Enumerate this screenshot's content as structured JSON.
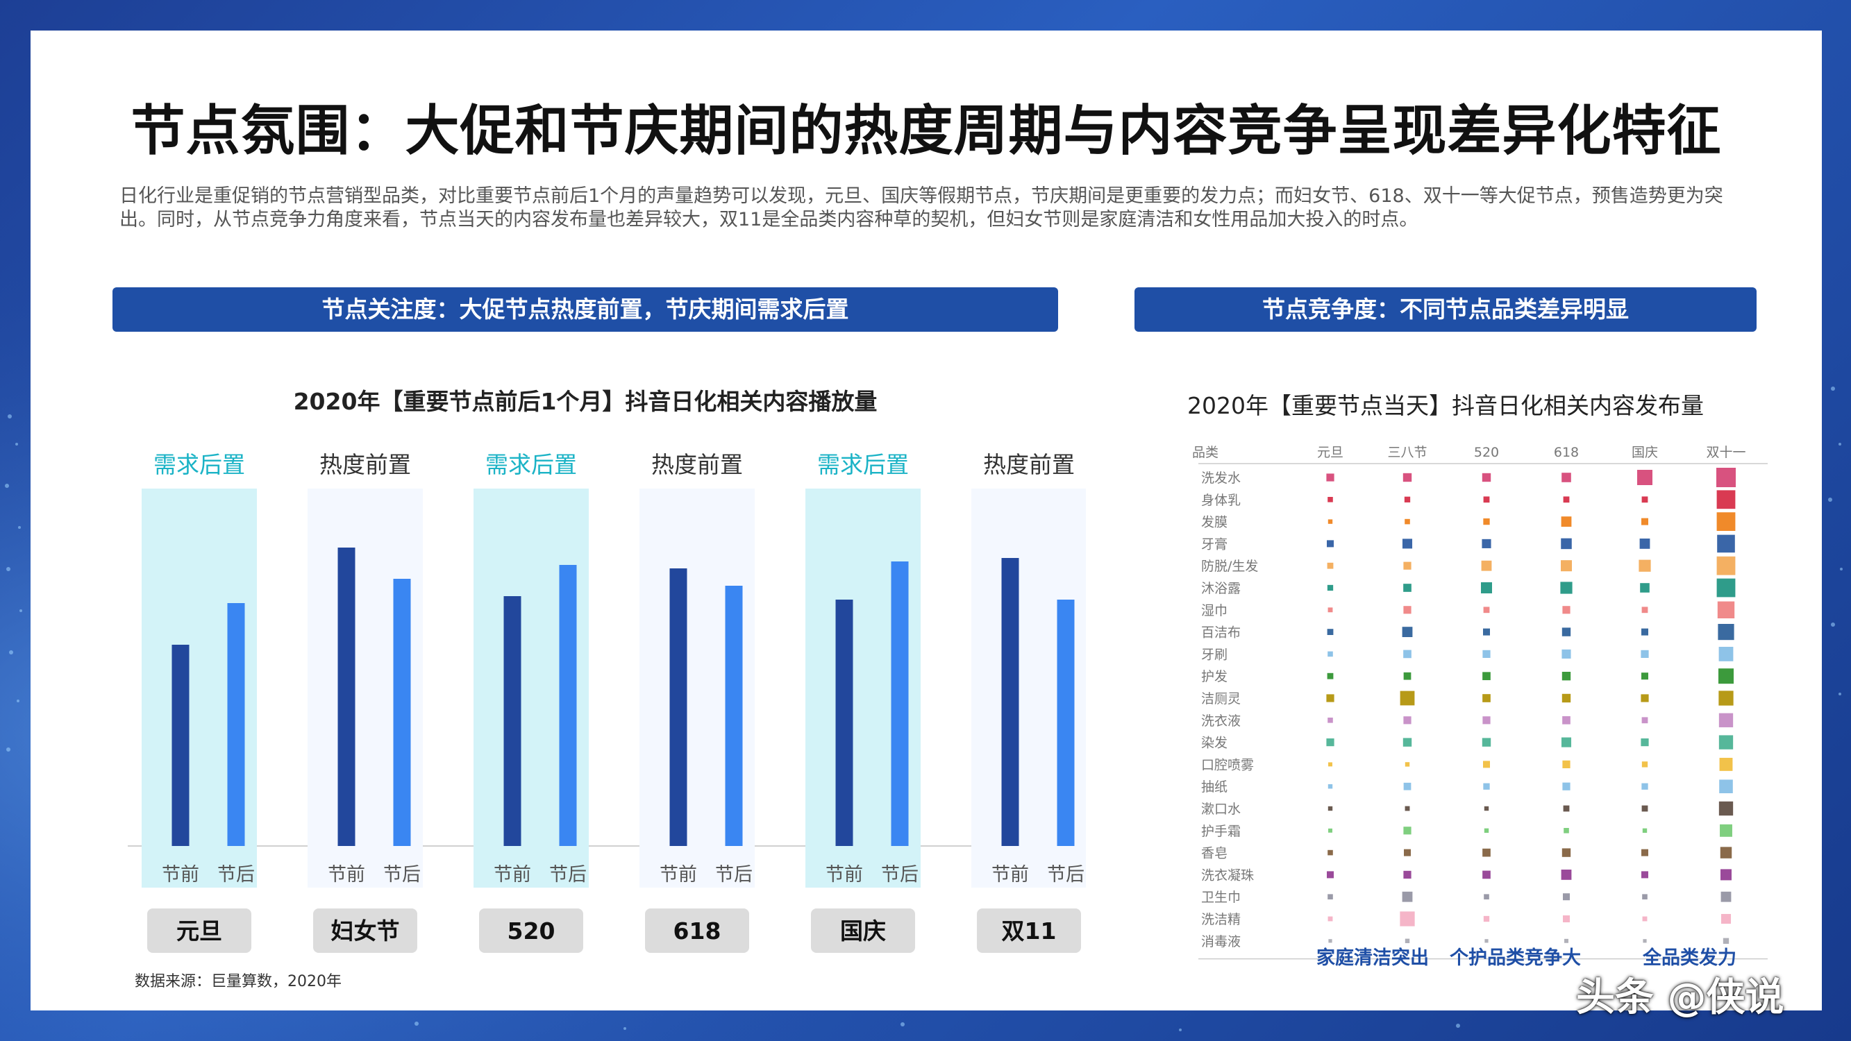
{
  "title": "节点氛围：大促和节庆期间的热度周期与内容竞争呈现差异化特征",
  "intro": "日化行业是重促销的节点营销型品类，对比重要节点前后1个月的声量趋势可以发现，元旦、国庆等假期节点，节庆期间是更重要的发力点；而妇女节、618、双十一等大促节点，预售造势更为突出。同时，从节点竞争力角度来看，节点当天的内容发布量也差异较大，双11是全品类内容种草的契机，但妇女节则是家庭清洁和女性用品加大投入的时点。",
  "left": {
    "banner": "节点关注度：大促节点热度前置，节庆期间需求后置",
    "source": "数据来源：巨量算数，2020年"
  },
  "right": {
    "banner": "节点竞争度：不同节点品类差异明显",
    "callouts": [
      "家庭清洁突出",
      "个护品类竞争大",
      "全品类发力"
    ]
  },
  "watermark": "头条 @侠说",
  "chart_data": [
    {
      "type": "bar",
      "title": "2020年【重要节点前后1个月】抖音日化相关内容播放量",
      "categories": [
        "元旦",
        "妇女节",
        "520",
        "618",
        "国庆",
        "双11"
      ],
      "group_labels": [
        "需求后置",
        "热度前置",
        "需求后置",
        "热度前置",
        "需求后置",
        "热度前置"
      ],
      "highlight": [
        true,
        false,
        true,
        false,
        true,
        false
      ],
      "sub_labels": [
        "节前",
        "节后"
      ],
      "series": [
        {
          "name": "节前",
          "values": [
            58,
            86,
            72,
            80,
            71,
            83
          ]
        },
        {
          "name": "节后",
          "values": [
            70,
            77,
            81,
            75,
            82,
            71
          ]
        }
      ],
      "ylim": [
        0,
        100
      ],
      "colors": {
        "before": "#22479c",
        "after": "#3a86f2",
        "highlight_bg": "#d3f3f8",
        "plain_bg": "#f4f8ff",
        "highlight_label": "#1bb3c6",
        "plain_label": "#333333"
      }
    },
    {
      "type": "heatmap",
      "title": "2020年【重要节点当天】抖音日化相关内容发布量",
      "corner_label": "品类",
      "columns": [
        "元旦",
        "三八节",
        "520",
        "618",
        "国庆",
        "双十一"
      ],
      "rows": [
        {
          "name": "洗发水",
          "color": "#d8527f",
          "values": [
            0.3,
            0.35,
            0.35,
            0.4,
            0.75,
            1.0
          ]
        },
        {
          "name": "身体乳",
          "color": "#d93a52",
          "values": [
            0.15,
            0.18,
            0.2,
            0.2,
            0.2,
            0.95
          ]
        },
        {
          "name": "发膜",
          "color": "#f08a2a",
          "values": [
            0.1,
            0.15,
            0.22,
            0.45,
            0.25,
            0.95
          ]
        },
        {
          "name": "牙膏",
          "color": "#3a66a8",
          "values": [
            0.25,
            0.42,
            0.38,
            0.48,
            0.45,
            0.9
          ]
        },
        {
          "name": "防脱/生发",
          "color": "#f4b062",
          "values": [
            0.2,
            0.3,
            0.45,
            0.5,
            0.55,
            0.95
          ]
        },
        {
          "name": "沐浴露",
          "color": "#2f9c8a",
          "values": [
            0.18,
            0.32,
            0.5,
            0.55,
            0.4,
            0.95
          ]
        },
        {
          "name": "湿巾",
          "color": "#f08a8a",
          "values": [
            0.12,
            0.3,
            0.2,
            0.3,
            0.2,
            0.85
          ]
        },
        {
          "name": "百洁布",
          "color": "#3a6aa0",
          "values": [
            0.2,
            0.45,
            0.25,
            0.35,
            0.25,
            0.8
          ]
        },
        {
          "name": "牙刷",
          "color": "#8ec3e8",
          "values": [
            0.15,
            0.32,
            0.3,
            0.38,
            0.3,
            0.7
          ]
        },
        {
          "name": "护发",
          "color": "#3c9a3c",
          "values": [
            0.2,
            0.28,
            0.32,
            0.35,
            0.25,
            0.75
          ]
        },
        {
          "name": "洁厕灵",
          "color": "#b79a18",
          "values": [
            0.3,
            0.7,
            0.32,
            0.35,
            0.3,
            0.72
          ]
        },
        {
          "name": "洗衣液",
          "color": "#c993c9",
          "values": [
            0.15,
            0.3,
            0.3,
            0.32,
            0.2,
            0.68
          ]
        },
        {
          "name": "染发",
          "color": "#56b79a",
          "values": [
            0.3,
            0.35,
            0.35,
            0.42,
            0.3,
            0.68
          ]
        },
        {
          "name": "口腔喷雾",
          "color": "#f2c24a",
          "values": [
            0.08,
            0.1,
            0.25,
            0.3,
            0.18,
            0.62
          ]
        },
        {
          "name": "抽纸",
          "color": "#8ec3e8",
          "values": [
            0.1,
            0.28,
            0.22,
            0.3,
            0.22,
            0.65
          ]
        },
        {
          "name": "漱口水",
          "color": "#6a5a50",
          "values": [
            0.1,
            0.12,
            0.1,
            0.2,
            0.2,
            0.68
          ]
        },
        {
          "name": "护手霜",
          "color": "#7fcf7f",
          "values": [
            0.08,
            0.3,
            0.1,
            0.15,
            0.1,
            0.58
          ]
        },
        {
          "name": "香皂",
          "color": "#8a6a4a",
          "values": [
            0.15,
            0.25,
            0.32,
            0.35,
            0.25,
            0.52
          ]
        },
        {
          "name": "洗衣凝珠",
          "color": "#9a4a9a",
          "values": [
            0.25,
            0.3,
            0.32,
            0.45,
            0.25,
            0.5
          ]
        },
        {
          "name": "卫生巾",
          "color": "#9a9aa8",
          "values": [
            0.15,
            0.45,
            0.15,
            0.25,
            0.15,
            0.45
          ]
        },
        {
          "name": "洗洁精",
          "color": "#f5b5c8",
          "values": [
            0.12,
            0.72,
            0.18,
            0.25,
            0.12,
            0.42
          ]
        },
        {
          "name": "消毒液",
          "color": "#b0b0b8",
          "values": [
            0.05,
            0.1,
            0.05,
            0.08,
            0.05,
            0.18
          ]
        }
      ]
    }
  ]
}
